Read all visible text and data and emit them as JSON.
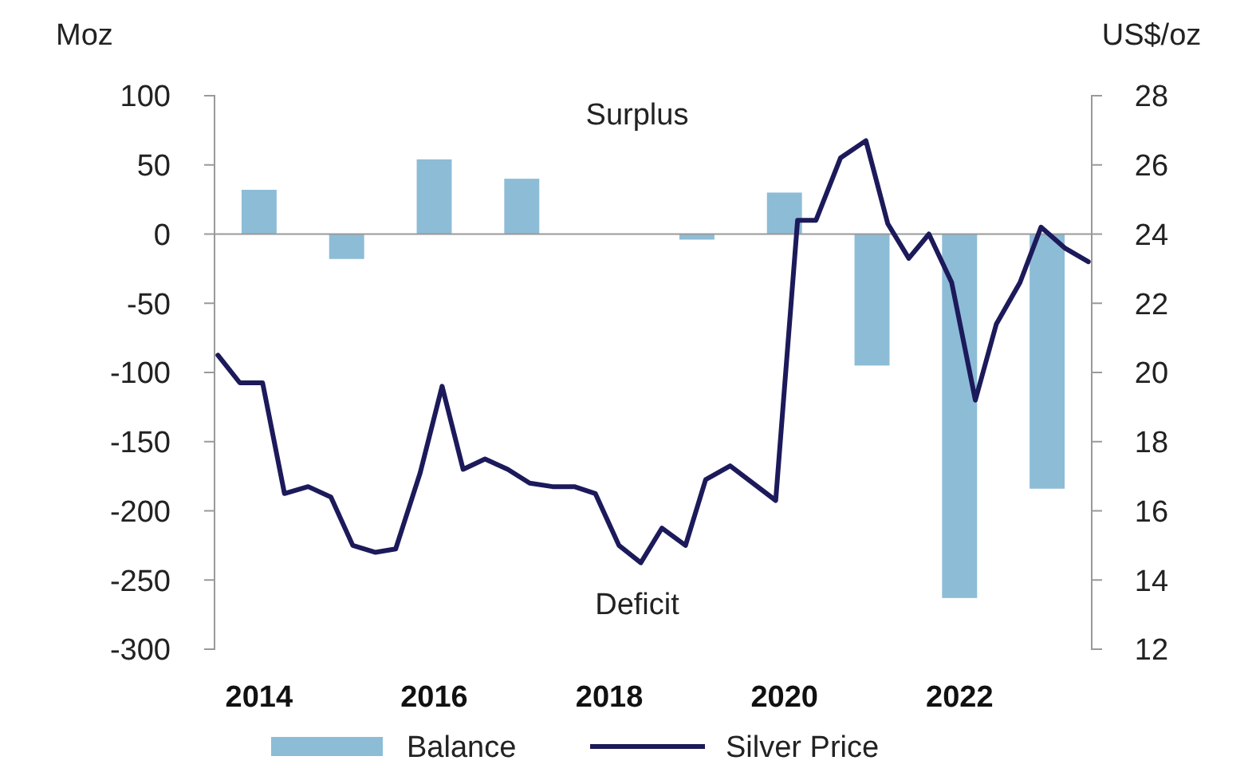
{
  "chart_data": {
    "type": "bar",
    "ylabel": "Moz",
    "y2label": "US$/oz",
    "annotations": [
      "Surplus",
      "Deficit"
    ],
    "xlim": [
      2013.5,
      2023.5
    ],
    "xticks": [
      2014,
      2016,
      2018,
      2020,
      2022
    ],
    "ylim": [
      -300,
      100
    ],
    "yticks": [
      -300,
      -250,
      -200,
      -150,
      -100,
      -50,
      0,
      50,
      100
    ],
    "y2lim": [
      12,
      28
    ],
    "y2ticks": [
      12,
      14,
      16,
      18,
      20,
      22,
      24,
      26,
      28
    ],
    "legend": "bottom",
    "series": [
      {
        "name": "Balance",
        "color": "#8dbcd6",
        "x": [
          2014,
          2015,
          2016,
          2017,
          2019,
          2020,
          2021,
          2022,
          2023
        ],
        "values": [
          32,
          -18,
          54,
          40,
          -4,
          30,
          -95,
          -263,
          -184
        ]
      },
      {
        "name": "Silver Price",
        "type": "line",
        "axis": "y2",
        "color": "#1c1a5a",
        "x": [
          2013.53,
          2013.78,
          2014.04,
          2014.29,
          2014.56,
          2014.82,
          2015.07,
          2015.33,
          2015.56,
          2015.84,
          2016.09,
          2016.33,
          2016.58,
          2016.84,
          2017.09,
          2017.35,
          2017.6,
          2017.84,
          2018.11,
          2018.36,
          2018.6,
          2018.87,
          2019.1,
          2019.38,
          2019.9,
          2020.15,
          2020.36,
          2020.64,
          2020.93,
          2021.18,
          2021.42,
          2021.65,
          2021.91,
          2022.18,
          2022.42,
          2022.69,
          2022.93,
          2023.2,
          2023.47
        ],
        "values": [
          20.5,
          19.7,
          19.7,
          16.5,
          16.7,
          16.4,
          15.0,
          14.8,
          14.9,
          17.1,
          19.6,
          17.2,
          17.5,
          17.2,
          16.8,
          16.7,
          16.7,
          16.5,
          15.0,
          14.5,
          15.5,
          15.0,
          16.9,
          17.3,
          16.3,
          24.4,
          24.4,
          26.2,
          26.7,
          24.3,
          23.3,
          24.0,
          22.6,
          19.2,
          21.4,
          22.6,
          24.2,
          23.6,
          23.2
        ]
      }
    ]
  }
}
